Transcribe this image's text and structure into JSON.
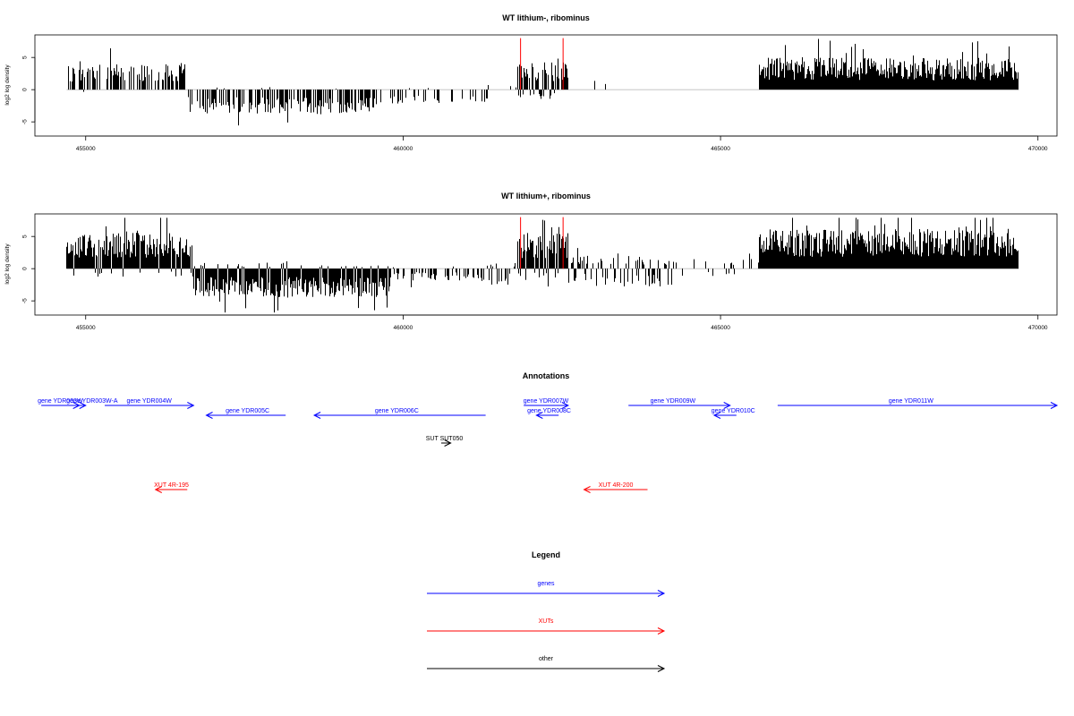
{
  "chart_data": [
    {
      "type": "bar",
      "title": "WT lithium-, ribominus",
      "ylabel": "log2 log density",
      "xlim": [
        454200,
        470300
      ],
      "ylim": [
        -7.2,
        8.5
      ],
      "x_ticks": [
        455000,
        460000,
        465000,
        470000
      ],
      "x_tick_labels": [
        "455000",
        "460000",
        "465000",
        "470000"
      ],
      "y_ticks": [
        -5,
        0,
        5
      ],
      "y_tick_labels": [
        "-5",
        "0",
        "5"
      ],
      "data_range": [
        454700,
        469700
      ],
      "red_lines_x": [
        461850,
        462520
      ],
      "red_lines_top": 8.0,
      "segments": [
        {
          "start": 454700,
          "end": 456600,
          "density": 0.55,
          "pos_mean": 2.6,
          "neg_mean": 0.3,
          "neg_prob": 0.05
        },
        {
          "start": 456600,
          "end": 458500,
          "density": 0.55,
          "pos_mean": 0.3,
          "neg_mean": 2.4,
          "neg_prob": 0.92
        },
        {
          "start": 458500,
          "end": 459600,
          "density": 0.75,
          "pos_mean": 0.2,
          "neg_mean": 2.5,
          "neg_prob": 0.95
        },
        {
          "start": 459600,
          "end": 461300,
          "density": 0.25,
          "pos_mean": 0.2,
          "neg_mean": 1.4,
          "neg_prob": 0.95
        },
        {
          "start": 461300,
          "end": 461800,
          "density": 0.1,
          "pos_mean": 0.5,
          "neg_mean": 1.5,
          "neg_prob": 0.6
        },
        {
          "start": 461800,
          "end": 462600,
          "density": 0.9,
          "pos_mean": 2.8,
          "neg_mean": 1.0,
          "neg_prob": 0.25
        },
        {
          "start": 462600,
          "end": 465600,
          "density": 0.02,
          "pos_mean": 1.4,
          "neg_mean": 1.0,
          "neg_prob": 0.3
        },
        {
          "start": 465600,
          "end": 469700,
          "density": 1.0,
          "pos_mean": 3.2,
          "neg_mean": 0.2,
          "neg_prob": 0.0
        }
      ]
    },
    {
      "type": "bar",
      "title": "WT lithium+, ribominus",
      "ylabel": "log2 log density",
      "xlim": [
        454200,
        470300
      ],
      "ylim": [
        -7.2,
        8.5
      ],
      "x_ticks": [
        455000,
        460000,
        465000,
        470000
      ],
      "x_tick_labels": [
        "455000",
        "460000",
        "465000",
        "470000"
      ],
      "y_ticks": [
        -5,
        0,
        5
      ],
      "y_tick_labels": [
        "-5",
        "0",
        "5"
      ],
      "data_range": [
        454700,
        469700
      ],
      "red_lines_x": [
        461850,
        462520
      ],
      "red_lines_top": 8.0,
      "segments": [
        {
          "start": 454700,
          "end": 456700,
          "density": 1.0,
          "pos_mean": 3.6,
          "neg_mean": 0.8,
          "neg_prob": 0.15
        },
        {
          "start": 456700,
          "end": 458200,
          "density": 1.0,
          "pos_mean": 0.6,
          "neg_mean": 2.9,
          "neg_prob": 0.85
        },
        {
          "start": 458200,
          "end": 459800,
          "density": 1.0,
          "pos_mean": 0.4,
          "neg_mean": 2.9,
          "neg_prob": 0.9
        },
        {
          "start": 459800,
          "end": 461200,
          "density": 0.45,
          "pos_mean": 0.4,
          "neg_mean": 1.2,
          "neg_prob": 0.9
        },
        {
          "start": 461200,
          "end": 461800,
          "density": 0.3,
          "pos_mean": 0.6,
          "neg_mean": 1.6,
          "neg_prob": 0.55
        },
        {
          "start": 461800,
          "end": 462600,
          "density": 1.0,
          "pos_mean": 3.6,
          "neg_mean": 1.2,
          "neg_prob": 0.2
        },
        {
          "start": 462600,
          "end": 464300,
          "density": 0.45,
          "pos_mean": 1.3,
          "neg_mean": 1.8,
          "neg_prob": 0.5
        },
        {
          "start": 464300,
          "end": 465600,
          "density": 0.2,
          "pos_mean": 1.0,
          "neg_mean": 0.8,
          "neg_prob": 0.3
        },
        {
          "start": 465600,
          "end": 469700,
          "density": 1.0,
          "pos_mean": 4.0,
          "neg_mean": 0.4,
          "neg_prob": 0.0
        }
      ]
    }
  ],
  "annotations": {
    "title": "Annotations",
    "xlim": [
      454200,
      470300
    ],
    "genes": [
      {
        "label": "gene YDR003W",
        "start": 454300,
        "end": 454900,
        "strand": "+",
        "row": 0,
        "label_x": 454600
      },
      {
        "label": "gene YDR003W-A",
        "start": 454800,
        "end": 455000,
        "strand": "+",
        "row": 0,
        "label_x": 455100
      },
      {
        "label": "gene YDR004W",
        "start": 455300,
        "end": 456700,
        "strand": "+",
        "row": 0,
        "label_x": 456000
      },
      {
        "label": "gene YDR005C",
        "start": 456900,
        "end": 458150,
        "strand": "-",
        "row": 1,
        "label_x": 457550
      },
      {
        "label": "gene YDR006C",
        "start": 458600,
        "end": 461300,
        "strand": "-",
        "row": 1,
        "label_x": 459900
      },
      {
        "label": "gene YDR007W",
        "start": 461900,
        "end": 462600,
        "strand": "+",
        "row": 0,
        "label_x": 462250
      },
      {
        "label": "gene YDR008C",
        "start": 462100,
        "end": 462450,
        "strand": "-",
        "row": 1,
        "label_x": 462300
      },
      {
        "label": "gene YDR009W",
        "start": 463550,
        "end": 465150,
        "strand": "+",
        "row": 0,
        "label_x": 464250
      },
      {
        "label": "gene YDR010C",
        "start": 464900,
        "end": 465250,
        "strand": "-",
        "row": 1,
        "label_x": 465200
      },
      {
        "label": "gene YDR011W",
        "start": 465900,
        "end": 470300,
        "strand": "+",
        "row": 0,
        "label_x": 468000
      }
    ],
    "other": [
      {
        "label": "SUT SUT050",
        "start": 460600,
        "end": 460750,
        "strand": "+",
        "label_x": 460650
      }
    ],
    "xuts": [
      {
        "label": "XUT 4R-195",
        "start": 456100,
        "end": 456600,
        "strand": "-",
        "label_x": 456350
      },
      {
        "label": "XUT 4R-200",
        "start": 462850,
        "end": 463850,
        "strand": "-",
        "label_x": 463350
      }
    ]
  },
  "legend": {
    "title": "Legend",
    "items": [
      {
        "label": "genes",
        "color": "#0000ff"
      },
      {
        "label": "XUTs",
        "color": "#ff0000"
      },
      {
        "label": "other",
        "color": "#000000"
      }
    ]
  },
  "colors": {
    "gene": "#0000ff",
    "xut": "#ff0000",
    "other": "#000000",
    "bars": "#000000",
    "baseline": "#bebebe",
    "red_line": "#ff0000"
  }
}
